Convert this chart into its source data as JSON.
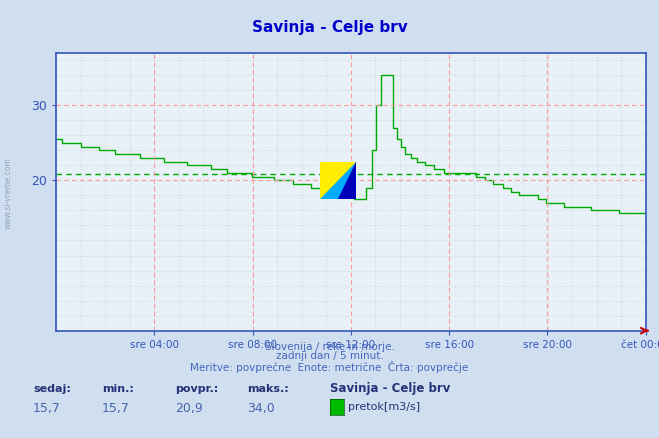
{
  "title": "Savinja - Celje brv",
  "title_color": "#0000cc",
  "bg_color": "#d0dff0",
  "plot_bg_color": "#e8f0f8",
  "grid_color_red": "#ff9999",
  "grid_color_dot": "#b0b8d0",
  "line_color": "#00aa00",
  "avg_line_color": "#00aa00",
  "avg_value": 20.9,
  "min_value": 15.7,
  "max_value": 34.0,
  "current_value": 15.7,
  "subtitle1": "Slovenija / reke in morje.",
  "subtitle2": "zadnji dan / 5 minut.",
  "subtitle3": "Meritve: povprečne  Enote: metrične  Črta: povprečje",
  "footer_labels": [
    "sedaj:",
    "min.:",
    "povpr.:",
    "maks.:"
  ],
  "footer_values": [
    "15,7",
    "15,7",
    "20,9",
    "34,0"
  ],
  "legend_name": "Savinja - Celje brv",
  "legend_item": "pretok[m3/s]",
  "x_tick_labels": [
    "sre 04:00",
    "sre 08:00",
    "sre 12:00",
    "sre 16:00",
    "sre 20:00",
    "čet 00:00"
  ],
  "x_tick_positions": [
    0.1667,
    0.3333,
    0.5,
    0.6667,
    0.8333,
    1.0
  ],
  "ylim": [
    0,
    37
  ],
  "yticks": [
    20,
    30
  ],
  "left_label": "www.si-vreme.com"
}
